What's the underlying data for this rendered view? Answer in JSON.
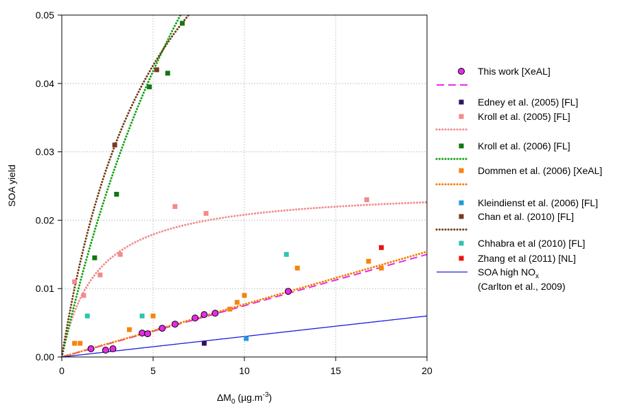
{
  "chart_data": {
    "type": "scatter",
    "xlabel_main": "ΔM",
    "xlabel_sub": "0",
    "xlabel_unit": " (µg.m",
    "xlabel_sup": "-3",
    "xlabel_close": ")",
    "ylabel": "SOA yield",
    "xlim": [
      0,
      20
    ],
    "ylim": [
      0,
      0.05
    ],
    "x_ticks": [
      "0",
      "5",
      "10",
      "15",
      "20"
    ],
    "y_ticks": [
      "0.00",
      "0.01",
      "0.02",
      "0.03",
      "0.04",
      "0.05"
    ],
    "x_tick_values": [
      0,
      5,
      10,
      15,
      20
    ],
    "y_tick_values": [
      0,
      0.01,
      0.02,
      0.03,
      0.04,
      0.05
    ],
    "grid": true,
    "legend_position": "right",
    "series": [
      {
        "name": "This work [XeAL]",
        "kind": "points",
        "marker": "circle",
        "color": "#e62ce6",
        "points": [
          [
            1.6,
            0.0012
          ],
          [
            2.4,
            0.001
          ],
          [
            2.8,
            0.0012
          ],
          [
            4.4,
            0.0035
          ],
          [
            4.7,
            0.0034
          ],
          [
            5.5,
            0.0042
          ],
          [
            6.2,
            0.0048
          ],
          [
            7.3,
            0.0057
          ],
          [
            7.8,
            0.0062
          ],
          [
            8.4,
            0.0064
          ],
          [
            12.4,
            0.0096
          ]
        ]
      },
      {
        "name": "",
        "kind": "line",
        "dash": "dashed",
        "color": "#e62ce6",
        "fit": "linear",
        "slope": 0.00075,
        "intercept": 0
      },
      {
        "name": "Edney et al. (2005) [FL]",
        "kind": "points",
        "marker": "square",
        "color": "#2e1462",
        "points": [
          [
            7.8,
            0.002
          ]
        ]
      },
      {
        "name": "Kroll et al. (2005) [FL]",
        "kind": "points",
        "marker": "square",
        "color": "#f28b8b",
        "points": [
          [
            0.7,
            0.011
          ],
          [
            1.2,
            0.009
          ],
          [
            2.1,
            0.012
          ],
          [
            3.2,
            0.015
          ],
          [
            6.2,
            0.022
          ],
          [
            7.9,
            0.021
          ],
          [
            16.7,
            0.023
          ]
        ]
      },
      {
        "name": "",
        "kind": "line",
        "dash": "dotted",
        "color": "#f28b8b",
        "fit": "odum",
        "alpha": 0.0248,
        "K": 0.52
      },
      {
        "name": "Kroll et al. (2006) [FL]",
        "kind": "points",
        "marker": "square",
        "color": "#117711",
        "points": [
          [
            1.8,
            0.0145
          ],
          [
            3.0,
            0.0238
          ],
          [
            4.8,
            0.0395
          ],
          [
            5.8,
            0.0415
          ],
          [
            6.6,
            0.0488
          ]
        ]
      },
      {
        "name": "",
        "kind": "line",
        "dash": "dotted",
        "color": "#11a011",
        "fit": "odum",
        "alpha": 0.145,
        "K": 0.081
      },
      {
        "name": "Dommen et al. (2006) [XeAL]",
        "kind": "points",
        "marker": "square",
        "color": "#f5850c",
        "points": [
          [
            0.7,
            0.002
          ],
          [
            1.0,
            0.002
          ],
          [
            3.7,
            0.004
          ],
          [
            5.0,
            0.006
          ],
          [
            9.2,
            0.007
          ],
          [
            9.6,
            0.008
          ],
          [
            10.0,
            0.009
          ],
          [
            12.9,
            0.013
          ],
          [
            16.8,
            0.014
          ],
          [
            17.5,
            0.013
          ]
        ]
      },
      {
        "name": "",
        "kind": "line",
        "dash": "dotted",
        "color": "#f57c00",
        "fit": "linear",
        "slope": 0.00077,
        "intercept": 0
      },
      {
        "name": "Kleindienst et al. (2006) [FL]",
        "kind": "points",
        "marker": "square",
        "color": "#2299dd",
        "points": [
          [
            10.1,
            0.0027
          ]
        ]
      },
      {
        "name": "Chan et al. (2010) [FL]",
        "kind": "points",
        "marker": "square",
        "color": "#7b3a22",
        "points": [
          [
            2.9,
            0.031
          ],
          [
            5.2,
            0.042
          ]
        ]
      },
      {
        "name": "",
        "kind": "line",
        "dash": "dotted",
        "color": "#6e3b12",
        "fit": "odum",
        "alpha": 0.09,
        "K": 0.18
      },
      {
        "name": "Chhabra et al (2010) [FL]",
        "kind": "points",
        "marker": "square",
        "color": "#2ec4b0",
        "points": [
          [
            1.4,
            0.006
          ],
          [
            4.4,
            0.006
          ],
          [
            12.3,
            0.015
          ]
        ]
      },
      {
        "name": "Zhang et al (2011) [NL]",
        "kind": "points",
        "marker": "square",
        "color": "#ee1111",
        "points": [
          [
            17.5,
            0.016
          ]
        ]
      },
      {
        "name": "SOA high NOx (Carlton et al., 2009)",
        "kind": "line",
        "dash": "solid",
        "color": "#1a1adb",
        "fit": "linear",
        "slope": 0.0003,
        "intercept": 0
      }
    ],
    "legend": [
      {
        "type": "circle",
        "color": "#e62ce6",
        "label": "This work [XeAL]"
      },
      {
        "type": "dash",
        "color": "#e62ce6",
        "label": ""
      },
      {
        "type": "square",
        "color": "#2e1462",
        "label": "Edney et al. (2005) [FL]"
      },
      {
        "type": "square",
        "color": "#f28b8b",
        "label": "Kroll et al. (2005) [FL]"
      },
      {
        "type": "dot",
        "color": "#f28b8b",
        "label": ""
      },
      {
        "type": "square",
        "color": "#117711",
        "label": "Kroll et al. (2006) [FL]"
      },
      {
        "type": "dot",
        "color": "#11a011",
        "label": ""
      },
      {
        "type": "square",
        "color": "#f5850c",
        "label": "Dommen et al. (2006) [XeAL]"
      },
      {
        "type": "dot",
        "color": "#f57c00",
        "label": ""
      },
      {
        "type": "square",
        "color": "#2299dd",
        "label": "Kleindienst et al. (2006) [FL]"
      },
      {
        "type": "square",
        "color": "#7b3a22",
        "label": "Chan et al. (2010) [FL]"
      },
      {
        "type": "dot",
        "color": "#6e3b12",
        "label": ""
      },
      {
        "type": "square",
        "color": "#2ec4b0",
        "label": "Chhabra et al (2010) [FL]"
      },
      {
        "type": "square",
        "color": "#ee1111",
        "label": "Zhang et al (2011) [NL]"
      },
      {
        "type": "solid",
        "color": "#1a1adb",
        "label": "SOA high NO",
        "label_sub": "x",
        "label_line2": "(Carlton et al., 2009)"
      }
    ]
  }
}
